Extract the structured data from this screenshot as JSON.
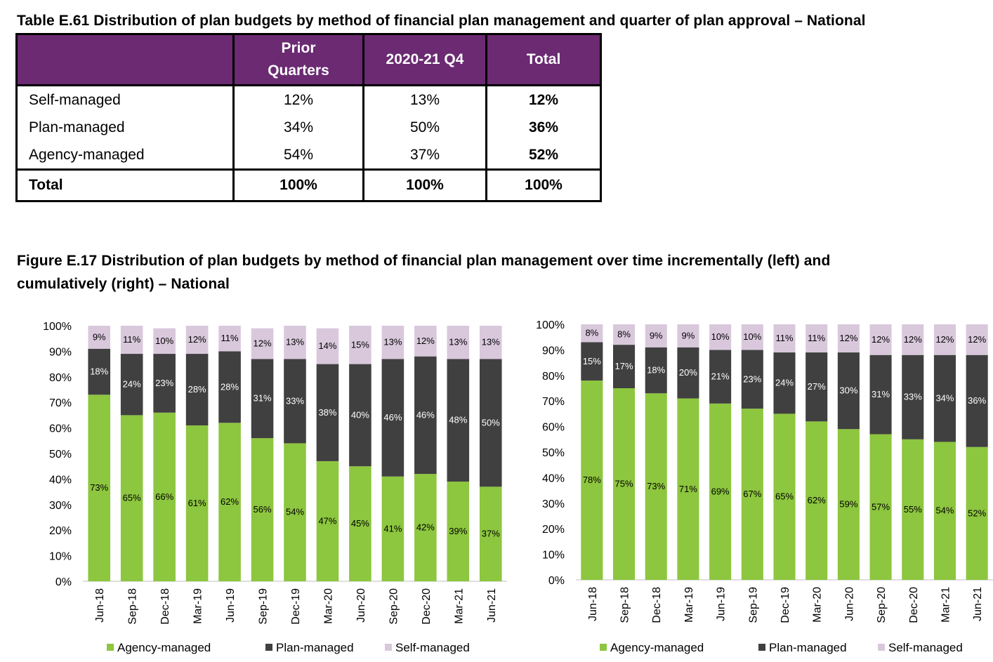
{
  "table": {
    "title": "Table E.61 Distribution of plan budgets by method of financial plan management and quarter of plan approval – National",
    "headers": [
      "",
      "Prior Quarters",
      "2020-21 Q4",
      "Total"
    ],
    "rows": [
      {
        "label": "Self-managed",
        "prior": "12%",
        "q4": "13%",
        "total": "12%"
      },
      {
        "label": "Plan-managed",
        "prior": "34%",
        "q4": "50%",
        "total": "36%"
      },
      {
        "label": "Agency-managed",
        "prior": "54%",
        "q4": "37%",
        "total": "52%"
      }
    ],
    "total_row": {
      "label": "Total",
      "prior": "100%",
      "q4": "100%",
      "total": "100%"
    }
  },
  "figure": {
    "title_line1": "Figure E.17 Distribution of plan budgets by method of financial plan management over time incrementally (left) and",
    "title_line2": "cumulatively (right) – National"
  },
  "colors": {
    "agency": "#8dc63f",
    "plan": "#404040",
    "self": "#d9c8dc",
    "header_purple": "#6b2a72"
  },
  "chart_data": [
    {
      "type": "bar",
      "stacked": true,
      "categories": [
        "Jun-18",
        "Sep-18",
        "Dec-18",
        "Mar-19",
        "Jun-19",
        "Sep-19",
        "Dec-19",
        "Mar-20",
        "Jun-20",
        "Sep-20",
        "Dec-20",
        "Mar-21",
        "Jun-21"
      ],
      "series": [
        {
          "name": "Agency-managed",
          "values": [
            73,
            65,
            66,
            61,
            62,
            56,
            54,
            47,
            45,
            41,
            42,
            39,
            37
          ]
        },
        {
          "name": "Plan-managed",
          "values": [
            18,
            24,
            23,
            28,
            28,
            31,
            33,
            38,
            40,
            46,
            46,
            48,
            50
          ]
        },
        {
          "name": "Self-managed",
          "values": [
            9,
            11,
            10,
            12,
            11,
            12,
            13,
            14,
            15,
            13,
            12,
            13,
            13
          ]
        }
      ],
      "ylim": [
        0,
        100
      ],
      "yticks": [
        "0%",
        "10%",
        "20%",
        "30%",
        "40%",
        "50%",
        "60%",
        "70%",
        "80%",
        "90%",
        "100%"
      ],
      "legend_position": "bottom"
    },
    {
      "type": "bar",
      "stacked": true,
      "categories": [
        "Jun-18",
        "Sep-18",
        "Dec-18",
        "Mar-19",
        "Jun-19",
        "Sep-19",
        "Dec-19",
        "Mar-20",
        "Jun-20",
        "Sep-20",
        "Dec-20",
        "Mar-21",
        "Jun-21"
      ],
      "series": [
        {
          "name": "Agency-managed",
          "values": [
            78,
            75,
            73,
            71,
            69,
            67,
            65,
            62,
            59,
            57,
            55,
            54,
            52
          ]
        },
        {
          "name": "Plan-managed",
          "values": [
            15,
            17,
            18,
            20,
            21,
            23,
            24,
            27,
            30,
            31,
            33,
            34,
            36
          ]
        },
        {
          "name": "Self-managed",
          "values": [
            8,
            8,
            9,
            9,
            10,
            10,
            11,
            11,
            12,
            12,
            12,
            12,
            12
          ]
        }
      ],
      "ylim": [
        0,
        100
      ],
      "yticks": [
        "0%",
        "10%",
        "20%",
        "30%",
        "40%",
        "50%",
        "60%",
        "70%",
        "80%",
        "90%",
        "100%"
      ],
      "legend_position": "bottom"
    }
  ]
}
